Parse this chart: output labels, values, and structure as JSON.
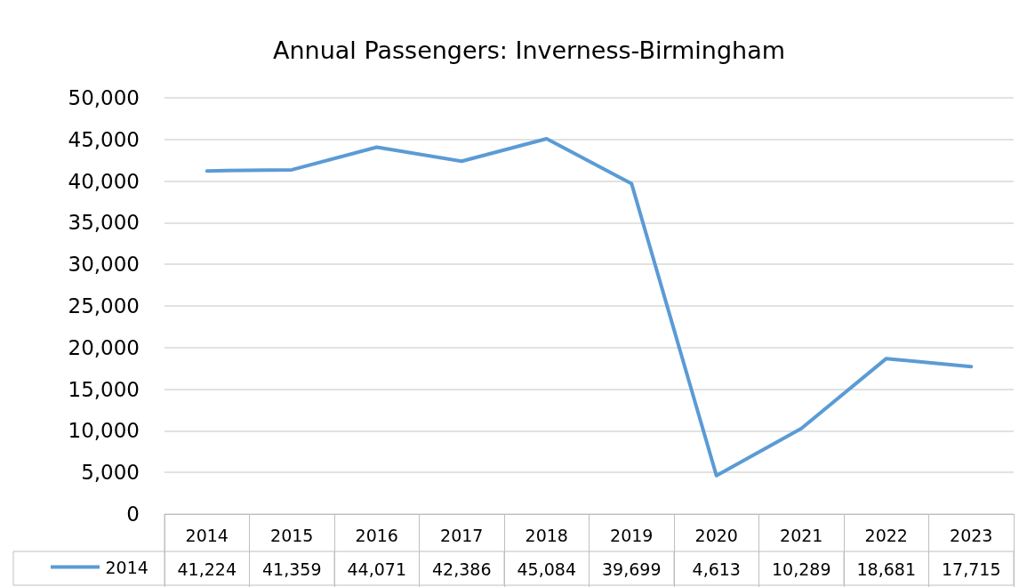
{
  "chart_data": {
    "type": "line",
    "title": "Annual Passengers: Inverness-Birmingham",
    "categories": [
      "2014",
      "2015",
      "2016",
      "2017",
      "2018",
      "2019",
      "2020",
      "2021",
      "2022",
      "2023"
    ],
    "series": [
      {
        "name": "2014",
        "color": "#5b9bd5",
        "values": [
          41224,
          41359,
          44071,
          42386,
          45084,
          39699,
          4613,
          10289,
          18681,
          17715
        ],
        "value_labels": [
          "41,224",
          "41,359",
          "44,071",
          "42,386",
          "45,084",
          "39,699",
          "4,613",
          "10,289",
          "18,681",
          "17,715"
        ]
      }
    ],
    "ylim": [
      0,
      50000
    ],
    "yticks": [
      0,
      {
        "value": 5000,
        "label": "5,000"
      },
      {
        "value": 10000,
        "label": "10,000"
      },
      {
        "value": 15000,
        "label": "15,000"
      },
      {
        "value": 20000,
        "label": "20,000"
      },
      {
        "value": 25000,
        "label": "25,000"
      },
      {
        "value": 30000,
        "label": "30,000"
      },
      {
        "value": 35000,
        "label": "35,000"
      },
      {
        "value": 40000,
        "label": "40,000"
      },
      {
        "value": 45000,
        "label": "45,000"
      },
      {
        "value": 50000,
        "label": "50,000"
      }
    ],
    "grid": "y",
    "legend": "bottom left",
    "marker": "none",
    "line_style": "solid"
  }
}
